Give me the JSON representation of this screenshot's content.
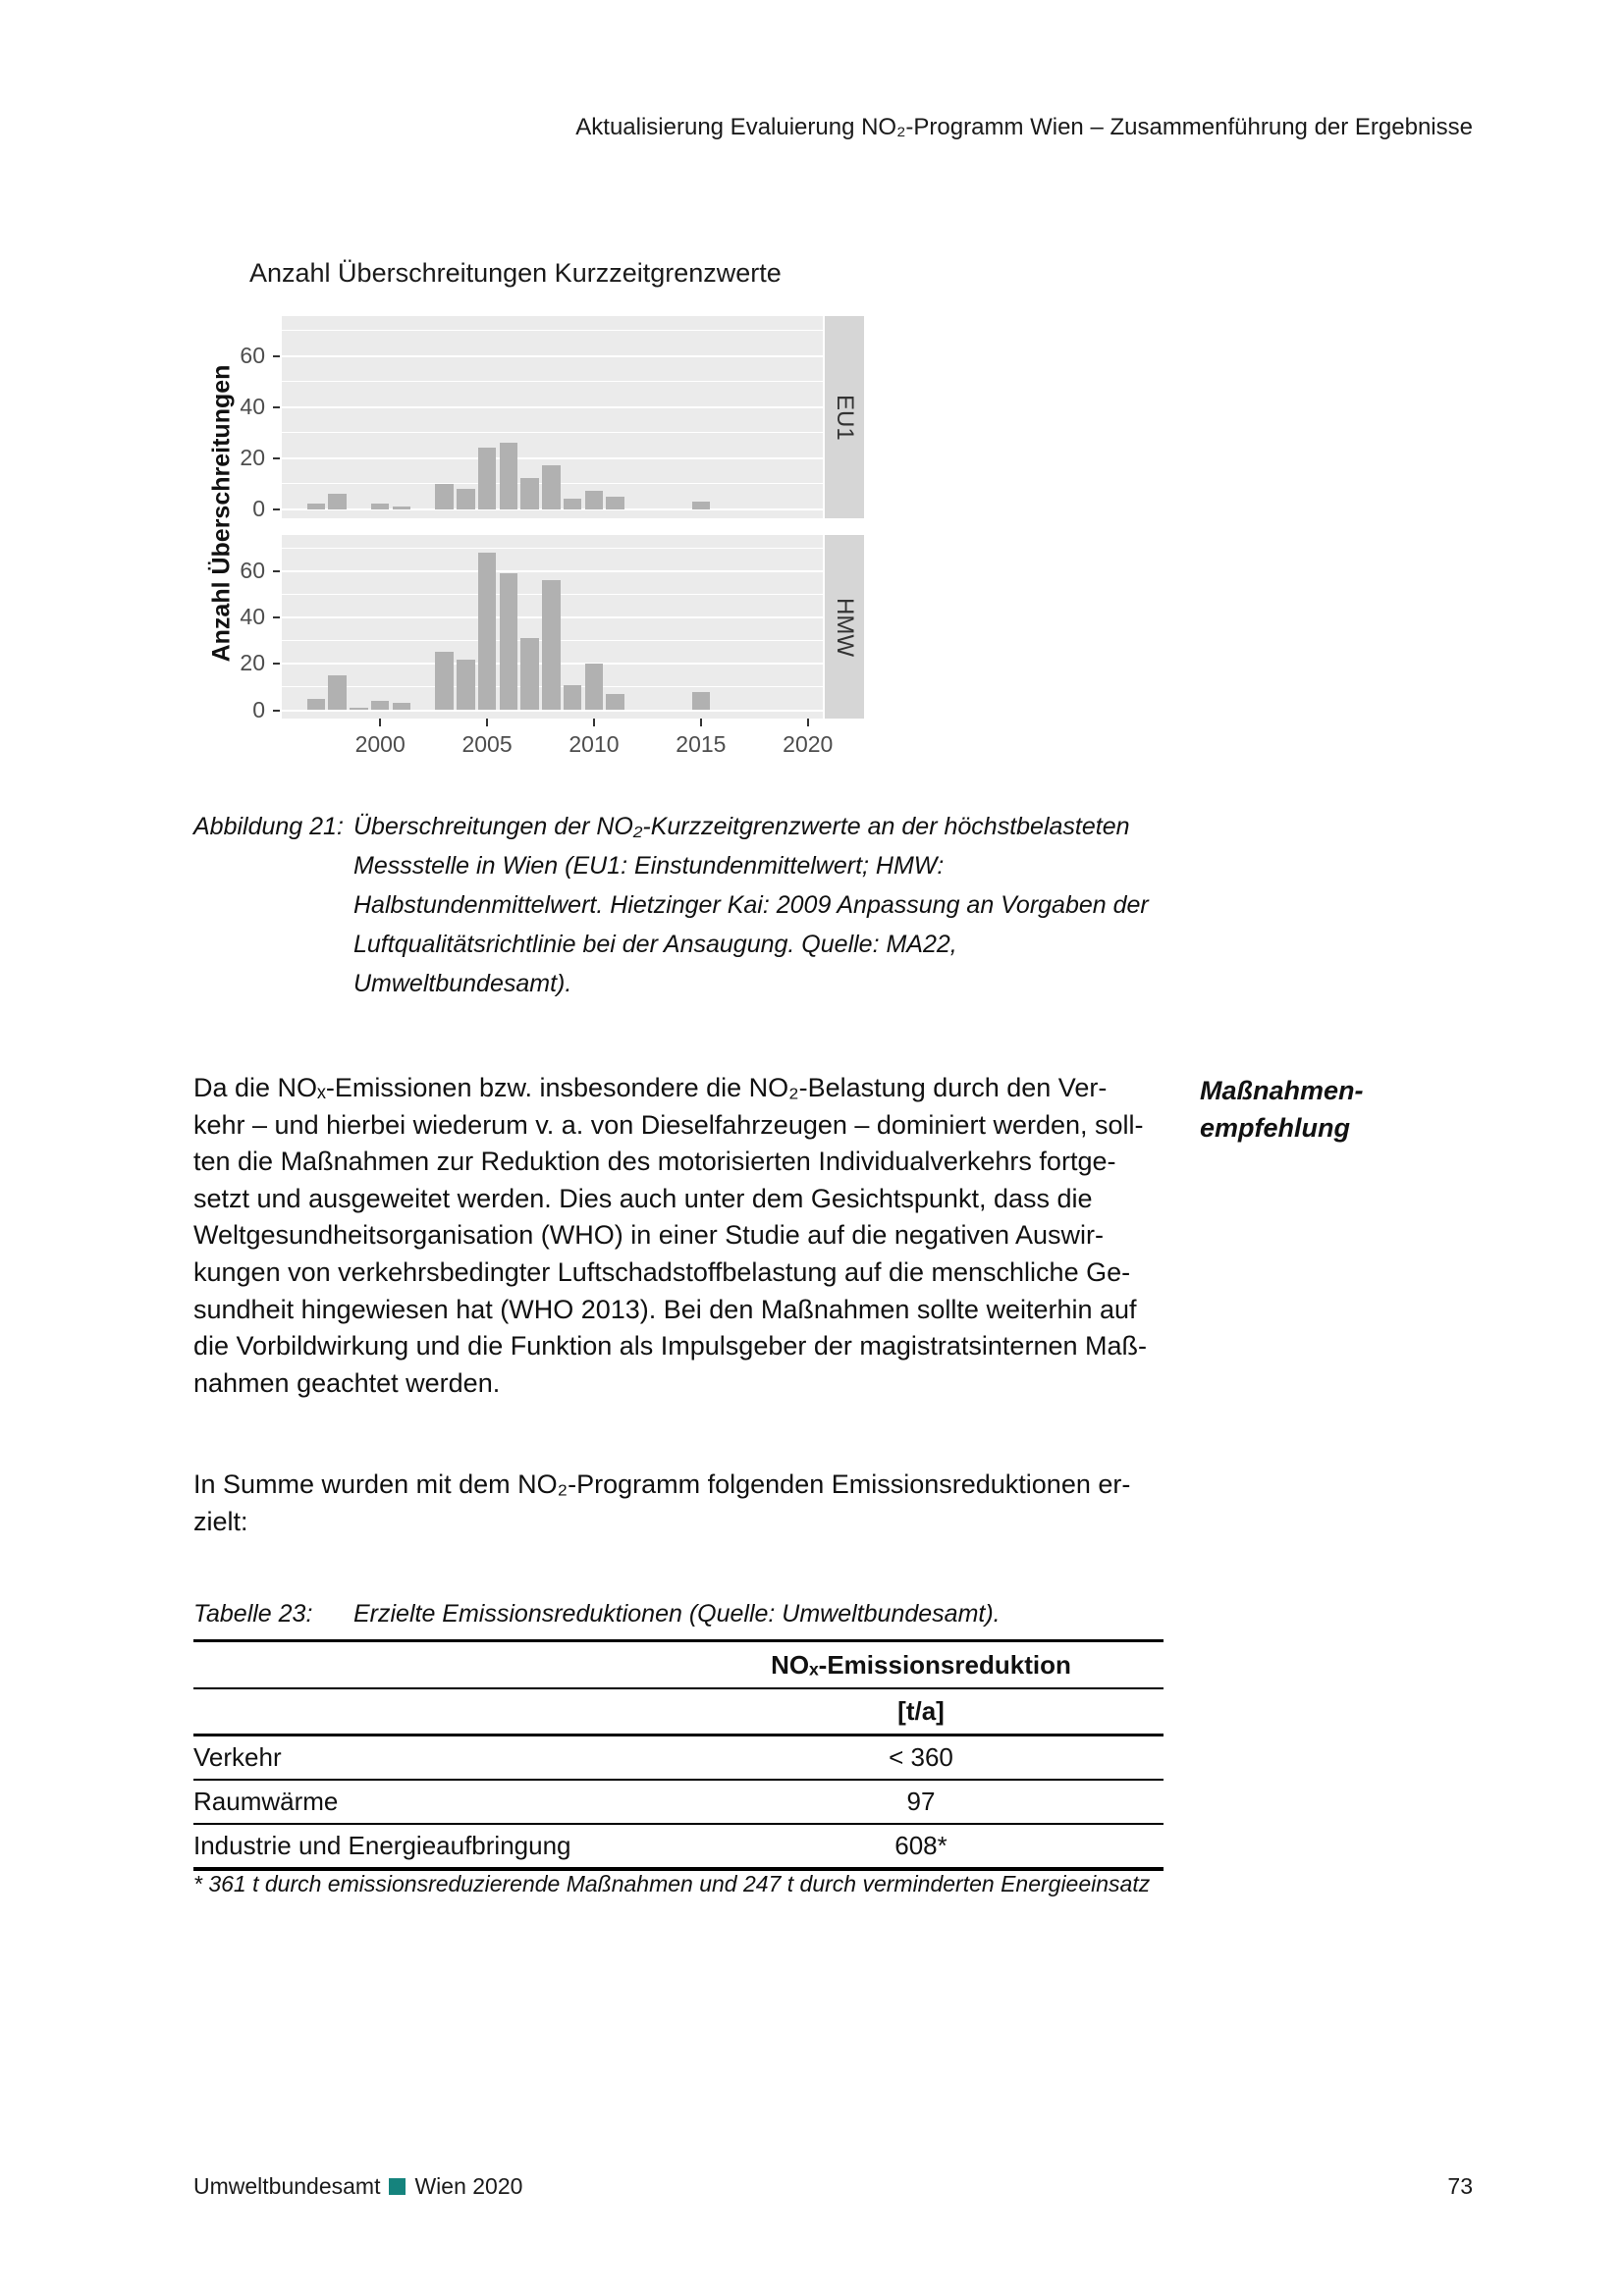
{
  "header": {
    "running_title": "Aktualisierung Evaluierung NO₂-Programm Wien – Zusammenführung der Ergebnisse"
  },
  "chart_data": {
    "type": "bar",
    "title": "Anzahl Überschreitungen Kurzzeitgrenzwerte",
    "ylabel": "Anzahl Überschreitungen",
    "facets": [
      "EU1",
      "HMW"
    ],
    "x": [
      1997,
      1998,
      1999,
      2000,
      2001,
      2002,
      2003,
      2004,
      2005,
      2006,
      2007,
      2008,
      2009,
      2010,
      2011,
      2012,
      2013,
      2014,
      2015
    ],
    "series": [
      {
        "name": "EU1",
        "values": [
          2,
          6,
          0,
          2,
          1,
          0,
          10,
          8,
          24,
          26,
          12,
          17,
          4,
          7,
          5,
          0,
          0,
          0,
          3
        ]
      },
      {
        "name": "HMW",
        "values": [
          5,
          15,
          1,
          4,
          3,
          0,
          25,
          22,
          68,
          59,
          31,
          56,
          11,
          20,
          7,
          0,
          0,
          0,
          8
        ]
      }
    ],
    "x_ticks": [
      2000,
      2005,
      2010,
      2015,
      2020
    ],
    "y_ticks": [
      0,
      20,
      40,
      60
    ],
    "y_minor_gridlines": [
      10,
      30,
      50,
      70
    ],
    "xlim": [
      1995.4,
      2020.7
    ],
    "ylim": [
      0,
      72
    ],
    "grid": "white horizontal gridlines on gray panels, faceted vertically, strip labels on right",
    "legend_position": "none",
    "colors": {
      "bar": "#b1b1b1",
      "panel_bg": "#ebebeb",
      "strip_bg": "#d6d6d6",
      "tick_text": "#4d4d4d"
    }
  },
  "figure_caption": {
    "label": "Abbildung 21:",
    "lines": [
      "Überschreitungen der NO₂-Kurzzeitgrenzwerte an der höchstbelasteten",
      "Messstelle in Wien (EU1: Einstundenmittelwert; HMW:",
      "Halbstundenmittelwert. Hietzinger Kai: 2009 Anpassung an Vorgaben der",
      "Luftqualitätsrichtlinie bei der Ansaugung. Quelle: MA22,",
      "Umweltbundesamt)."
    ]
  },
  "body": {
    "paragraph1_lines": [
      "Da die NOₓ-Emissionen bzw. insbesondere die NO₂-Belastung durch den Ver-",
      "kehr – und hierbei wiederum v. a. von Dieselfahrzeugen – dominiert werden, soll-",
      "ten die Maßnahmen zur Reduktion des motorisierten Individualverkehrs fortge-",
      "setzt und ausgeweitet werden. Dies auch unter dem Gesichtspunkt, dass die",
      "Weltgesundheitsorganisation (WHO) in einer Studie auf die negativen Auswir-",
      "kungen von verkehrsbedingter Luftschadstoffbelastung auf die menschliche Ge-",
      "sundheit hingewiesen hat (WHO 2013). Bei den Maßnahmen sollte weiterhin auf",
      "die Vorbildwirkung und die Funktion als Impulsgeber der magistratsinternen Maß-",
      "nahmen geachtet werden."
    ],
    "margin_note_lines": [
      "Maßnahmen-",
      "empfehlung"
    ],
    "paragraph2_lines": [
      "In Summe wurden mit dem NO₂-Programm folgenden Emissionsreduktionen er-",
      "zielt:"
    ]
  },
  "table": {
    "caption_label": "Tabelle 23:",
    "caption_text": "Erzielte Emissionsreduktionen (Quelle: Umweltbundesamt).",
    "col2_header": "NOₓ-Emissionsreduktion",
    "col2_unit": "[t/a]",
    "rows": [
      {
        "label": "Verkehr",
        "value": "< 360"
      },
      {
        "label": "Raumwärme",
        "value": "97"
      },
      {
        "label": "Industrie und Energieaufbringung",
        "value": "608*"
      }
    ],
    "footnote": "* 361 t durch emissionsreduzierende Maßnahmen und 247 t durch verminderten Energieeinsatz"
  },
  "footer": {
    "brand": "Umweltbundesamt",
    "city_year": "Wien 2020",
    "page_number": "73",
    "accent_color": "#15837d"
  }
}
